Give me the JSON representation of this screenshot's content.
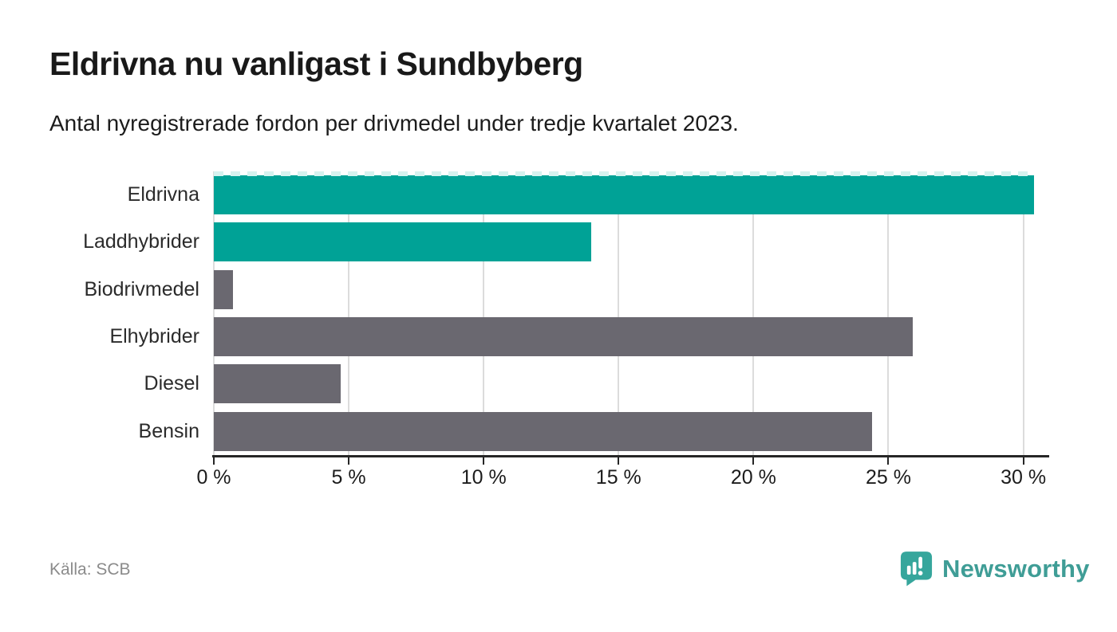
{
  "colors": {
    "accent_teal": "#00a296",
    "bar_gray": "#6a6870",
    "dash_cap": "#d6f2ef",
    "gridline": "#dcdcdc",
    "axis": "#262626",
    "title_text": "#191919",
    "body_text": "#1c1c1c",
    "label_text": "#2b2b2b",
    "source_text": "#8b8b8b",
    "brand_teal": "#3f9d96",
    "brand_bubble": "#36a69c"
  },
  "header": {
    "title": "Eldrivna nu vanligast i Sundbyberg",
    "subtitle": "Antal nyregistrerade fordon per drivmedel under tredje kvartalet 2023."
  },
  "chart_data": {
    "type": "bar",
    "orientation": "horizontal",
    "title": "Eldrivna nu vanligast i Sundbyberg",
    "subtitle": "Antal nyregistrerade fordon per drivmedel under tredje kvartalet 2023.",
    "categories": [
      "Eldrivna",
      "Laddhybrider",
      "Biodrivmedel",
      "Elhybrider",
      "Diesel",
      "Bensin"
    ],
    "values": [
      30.4,
      14,
      0.7,
      25.9,
      4.7,
      24.4
    ],
    "unit": "%",
    "series_colors": [
      "accent_teal",
      "accent_teal",
      "bar_gray",
      "bar_gray",
      "bar_gray",
      "bar_gray"
    ],
    "xlim": [
      0,
      30.9
    ],
    "xticks": [
      0,
      5,
      10,
      15,
      20,
      25,
      30
    ],
    "xtick_labels": [
      "0 %",
      "5 %",
      "10 %",
      "15 %",
      "20 %",
      "25 %",
      "30 %"
    ],
    "grid": "vertical-gridlines-on",
    "legend": "none",
    "top_bar_dashed_cap": true
  },
  "footer": {
    "source": "Källa: SCB",
    "brand_name": "Newsworthy"
  }
}
